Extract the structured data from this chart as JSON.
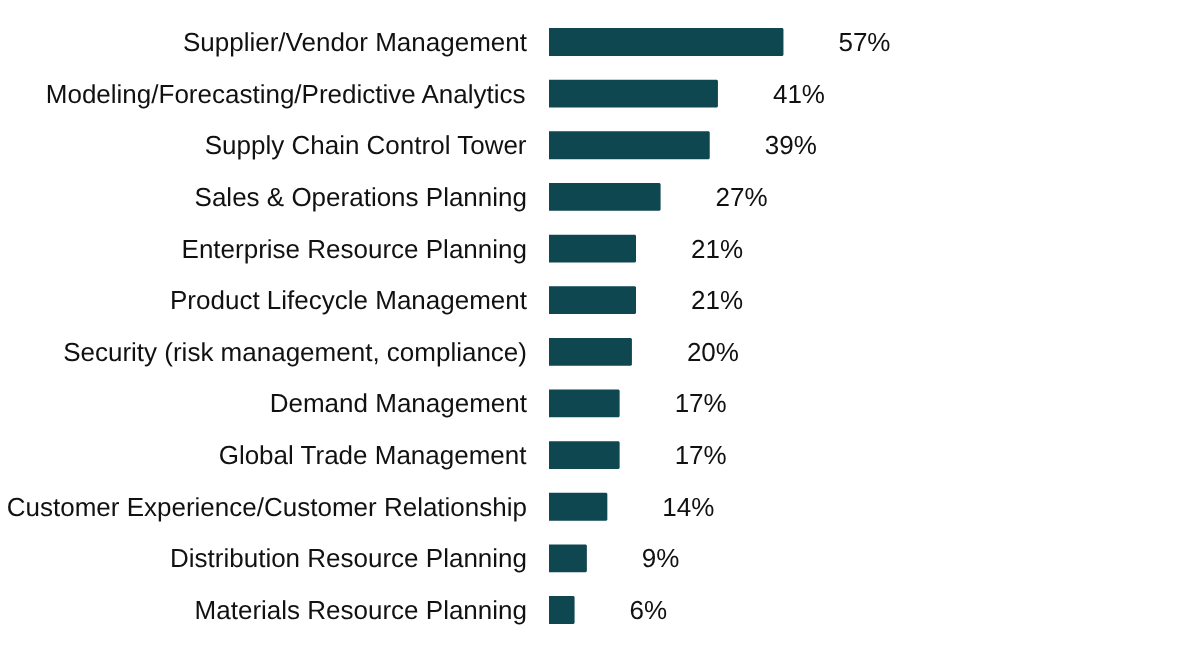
{
  "chart_data": {
    "type": "bar",
    "orientation": "horizontal",
    "categories": [
      "Supplier/Vendor Management",
      "Modeling/Forecasting/Predictive Analytics",
      "Supply Chain Control Tower",
      "Sales & Operations Planning",
      "Enterprise Resource Planning",
      "Product Lifecycle Management",
      "Security (risk management, compliance)",
      "Demand Management",
      "Global Trade Management",
      "Customer Experience/Customer Relationship",
      "Distribution Resource Planning",
      "Materials Resource Planning"
    ],
    "values": [
      57,
      41,
      39,
      27,
      21,
      21,
      20,
      17,
      17,
      14,
      9,
      6
    ],
    "value_labels": [
      "57%",
      "41%",
      "39%",
      "27%",
      "21%",
      "21%",
      "20%",
      "17%",
      "17%",
      "14%",
      "9%",
      "6%"
    ],
    "color": "#0e4750"
  }
}
